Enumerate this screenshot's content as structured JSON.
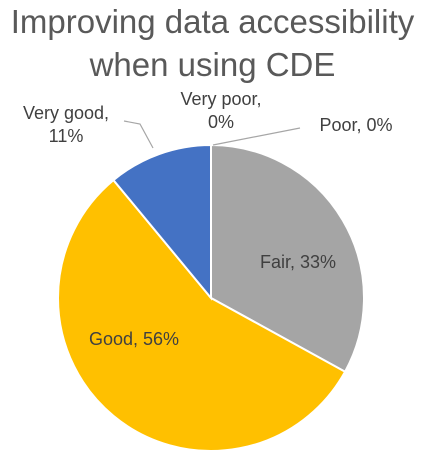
{
  "chart_data": {
    "type": "pie",
    "title_lines": [
      "Improving data accessibility",
      "when using CDE"
    ],
    "slices": [
      {
        "label": "Very poor",
        "value": 0,
        "percent": "0%",
        "color": "#4472C4"
      },
      {
        "label": "Poor",
        "value": 0,
        "percent": "0%",
        "color": "#ED7D31"
      },
      {
        "label": "Fair",
        "value": 33,
        "percent": "33%",
        "color": "#A5A5A5"
      },
      {
        "label": "Good",
        "value": 56,
        "percent": "56%",
        "color": "#FFC000"
      },
      {
        "label": "Very good",
        "value": 11,
        "percent": "11%",
        "color": "#4472C4"
      }
    ],
    "data_labels": [
      {
        "slice": "Fair",
        "lines": [
          "Fair, 33%"
        ]
      },
      {
        "slice": "Good",
        "lines": [
          "Good, 56%"
        ]
      },
      {
        "slice": "Very good",
        "lines": [
          "Very good,",
          "11%"
        ]
      },
      {
        "slice": "Very poor",
        "lines": [
          "Very poor,",
          "0%"
        ]
      },
      {
        "slice": "Poor",
        "lines": [
          "Poor, 0%"
        ]
      }
    ],
    "legend": "none"
  }
}
